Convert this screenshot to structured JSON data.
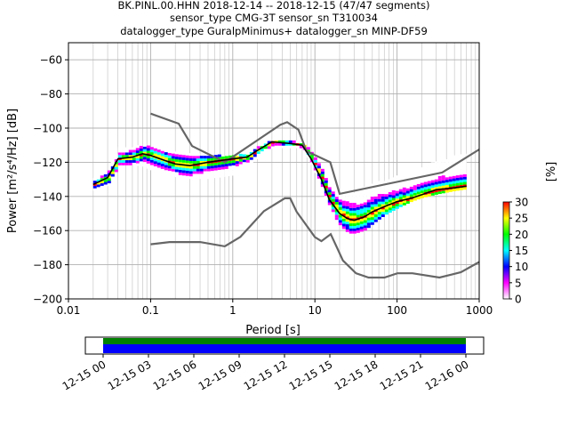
{
  "title": {
    "line1": "BK.PINL.00.HHN   2018-12-14 -- 2018-12-15  (47/47 segments)",
    "line2": "sensor_type CMG-3T sensor_sn T310034",
    "line3": "datalogger_type GuralpMinimus+ datalogger_sn MINP-DF59"
  },
  "chart_data": {
    "type": "heatmap",
    "xlabel": "Period [s]",
    "ylabel": "Power [m²/s⁴/Hz] [dB]",
    "xscale": "log",
    "xlim": [
      0.01,
      1000
    ],
    "ylim": [
      -200,
      -50
    ],
    "xticks": [
      {
        "v": 0.01,
        "label": "0.01"
      },
      {
        "v": 0.1,
        "label": "0.1"
      },
      {
        "v": 1,
        "label": "1"
      },
      {
        "v": 10,
        "label": "10"
      },
      {
        "v": 100,
        "label": "100"
      },
      {
        "v": 1000,
        "label": "1000"
      }
    ],
    "yticks": [
      -200,
      -180,
      -160,
      -140,
      -120,
      -100,
      -80,
      -60
    ],
    "grid": true,
    "colorbar": {
      "label": "[%]",
      "range": [
        0,
        30
      ],
      "ticks": [
        0,
        5,
        10,
        15,
        20,
        25,
        30
      ],
      "colors": [
        "#ffffff",
        "#ff00ff",
        "#0000ff",
        "#00ffff",
        "#00ff00",
        "#ffff00",
        "#ff0000"
      ]
    },
    "mode_curve": {
      "name": "mode",
      "color": "#000000",
      "period": [
        0.02,
        0.03,
        0.04,
        0.06,
        0.08,
        0.1,
        0.15,
        0.2,
        0.3,
        0.5,
        0.7,
        1,
        1.5,
        2,
        3,
        5,
        7,
        9,
        12,
        15,
        20,
        25,
        30,
        40,
        50,
        70,
        100,
        150,
        200,
        300,
        500,
        700
      ],
      "power": [
        -133,
        -129,
        -118,
        -117,
        -115,
        -116,
        -119,
        -121,
        -122,
        -120,
        -119,
        -118,
        -117,
        -113,
        -108,
        -109,
        -110,
        -118,
        -130,
        -142,
        -150,
        -153,
        -154,
        -152,
        -149,
        -146,
        -143,
        -141,
        -139,
        -136,
        -135,
        -134
      ]
    },
    "nhnm": {
      "name": "NHNM",
      "color": "#666666",
      "period": [
        0.1,
        0.22,
        0.32,
        0.8,
        3.8,
        4.6,
        6.3,
        7.9,
        15.4,
        20,
        354.8,
        1000
      ],
      "power": [
        -91.5,
        -97.4,
        -110.5,
        -120.0,
        -98.0,
        -96.5,
        -101.0,
        -113.5,
        -120.0,
        -138.5,
        -126.0,
        -112.5
      ]
    },
    "nlnm": {
      "name": "NLNM",
      "color": "#666666",
      "period": [
        0.1,
        0.17,
        0.4,
        0.8,
        1.24,
        2.4,
        4.3,
        5.0,
        6.0,
        10.0,
        12.0,
        15.6,
        21.9,
        31.6,
        45.0,
        70.0,
        101.0,
        154.0,
        328.0,
        600.0,
        1000.0
      ],
      "power": [
        -168.0,
        -166.7,
        -166.7,
        -169.2,
        -163.7,
        -148.6,
        -141.1,
        -141.1,
        -149.0,
        -163.8,
        -166.2,
        -162.1,
        -177.5,
        -185.0,
        -187.5,
        -187.5,
        -185.0,
        -185.0,
        -187.5,
        -184.4,
        -178.4
      ]
    },
    "density_band": {
      "period": [
        0.02,
        0.03,
        0.04,
        0.06,
        0.08,
        0.1,
        0.15,
        0.2,
        0.3,
        0.5,
        0.7,
        1,
        1.5,
        2,
        3,
        5,
        7,
        9,
        12,
        15,
        20,
        25,
        30,
        40,
        50,
        70,
        100,
        150,
        200,
        300,
        500,
        700
      ],
      "upper": [
        -130,
        -124,
        -112,
        -111,
        -110,
        -111,
        -113,
        -114,
        -115,
        -116,
        -116,
        -116,
        -115,
        -111,
        -107,
        -107,
        -108,
        -114,
        -124,
        -134,
        -137,
        -138,
        -137,
        -135,
        -132,
        -130,
        -128,
        -125,
        -122,
        -120,
        -116,
        -115
      ],
      "lower": [
        -136,
        -133,
        -121,
        -121,
        -122,
        -124,
        -127,
        -128,
        -129,
        -129,
        -128,
        -127,
        -122,
        -117,
        -111,
        -111,
        -111,
        -122,
        -136,
        -148,
        -157,
        -161,
        -161,
        -159,
        -155,
        -150,
        -146,
        -142,
        -140,
        -138,
        -136,
        -135
      ]
    }
  },
  "timeline": {
    "ticks": [
      "12-15 00",
      "12-15 03",
      "12-15 06",
      "12-15 09",
      "12-15 12",
      "12-15 15",
      "12-15 18",
      "12-15 21",
      "12-16 00"
    ],
    "coverage_colors": [
      "#008000",
      "#0000ff"
    ],
    "coverage_fraction": 1.0
  }
}
